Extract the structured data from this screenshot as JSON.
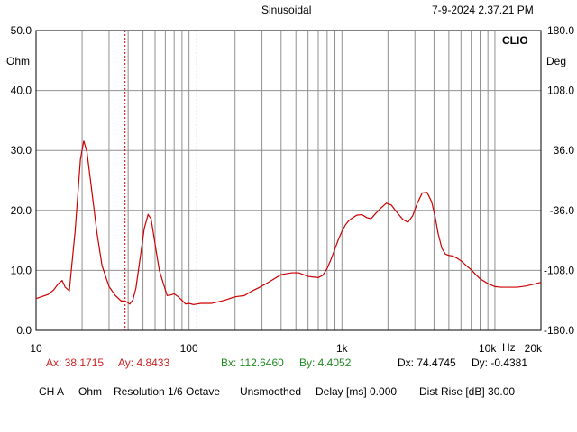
{
  "header": {
    "mode": "Sinusoidal",
    "timestamp": "7-9-2024 2.37.21 PM",
    "brand": "CLIO"
  },
  "axes": {
    "left_unit": "Ohm",
    "right_unit": "Deg",
    "x_unit": "Hz"
  },
  "cursors": {
    "a_x": "Ax: 38.1715",
    "a_y": "Ay: 4.8433",
    "b_x": "Bx: 112.6460",
    "b_y": "By: 4.4052",
    "d_x": "Dx: 74.4745",
    "d_y": "Dy: -0.4381"
  },
  "status": {
    "channel": "CH A",
    "unit": "Ohm",
    "resolution": "Resolution 1/6 Octave",
    "smoothing": "Unsmoothed",
    "delay": "Delay [ms] 0.000",
    "dist_rise": "Dist Rise [dB] 30.00"
  },
  "colors": {
    "trace": "#cc0000",
    "cursor_a": "#cc0000",
    "cursor_b": "#008000",
    "grid": "#909090",
    "cursor_a_text": "#cc2222",
    "cursor_b_text": "#228822"
  },
  "chart_data": {
    "type": "line",
    "x_scale": "log",
    "xlim": [
      10,
      20000
    ],
    "ylim": [
      0,
      50
    ],
    "y2lim": [
      -180,
      180
    ],
    "x_ticks": [
      10,
      100,
      1000,
      10000,
      20000
    ],
    "x_tick_labels": [
      "10",
      "100",
      "1k",
      "10k",
      "20k"
    ],
    "y_ticks": [
      0,
      10,
      20,
      30,
      40,
      50
    ],
    "y_tick_labels": [
      "0.0",
      "10.0",
      "20.0",
      "30.0",
      "40.0",
      "50.0"
    ],
    "y2_ticks": [
      -180,
      -108,
      -36,
      36,
      108,
      180
    ],
    "y2_tick_labels": [
      "-180.0",
      "-108.0",
      "-36.0",
      "36.0",
      "108.0",
      "180.0"
    ],
    "grid": true,
    "cursor_a_x": 38.1715,
    "cursor_b_x": 112.646,
    "series": [
      {
        "x": [
          10,
          12,
          13,
          14,
          14.8,
          15.5,
          16.5,
          18,
          19.5,
          20.5,
          21.5,
          23,
          25,
          27,
          30,
          33,
          36,
          38.2,
          41,
          43,
          45,
          48,
          51,
          54,
          56.5,
          58.5,
          61,
          64,
          68,
          72,
          76,
          80,
          85,
          90,
          95,
          100,
          107,
          112.6,
          120,
          140,
          170,
          200,
          230,
          260,
          290,
          330,
          400,
          470,
          520,
          560,
          600,
          650,
          700,
          750,
          800,
          850,
          900,
          950,
          1000,
          1050,
          1100,
          1150,
          1250,
          1350,
          1450,
          1550,
          1650,
          1800,
          1950,
          2100,
          2300,
          2500,
          2700,
          2900,
          3100,
          3350,
          3600,
          3850,
          4050,
          4250,
          4500,
          4750,
          5000,
          5300,
          5600,
          6000,
          6500,
          7000,
          7500,
          8000,
          9000,
          10000,
          11000,
          12000,
          14000,
          16000,
          18000,
          20000
        ],
        "values": [
          5.3,
          6.0,
          6.7,
          7.8,
          8.3,
          7.2,
          6.6,
          16.5,
          28.5,
          31.6,
          29.8,
          23.8,
          16.3,
          10.8,
          7.3,
          5.8,
          4.9,
          4.9,
          4.4,
          5.1,
          7.1,
          12.2,
          17.0,
          19.3,
          18.6,
          16.2,
          13.2,
          10.0,
          7.8,
          5.8,
          5.9,
          6.1,
          5.6,
          5.0,
          4.4,
          4.5,
          4.3,
          4.4,
          4.5,
          4.5,
          5.0,
          5.6,
          5.8,
          6.6,
          7.2,
          8.0,
          9.3,
          9.6,
          9.6,
          9.3,
          9.0,
          8.9,
          8.8,
          9.2,
          10.3,
          11.9,
          13.6,
          15.2,
          16.5,
          17.5,
          18.2,
          18.6,
          19.2,
          19.3,
          18.8,
          18.6,
          19.4,
          20.4,
          21.2,
          20.9,
          19.6,
          18.5,
          18.0,
          19.1,
          21.1,
          22.9,
          23.0,
          21.5,
          19.2,
          16.2,
          13.7,
          12.7,
          12.5,
          12.4,
          12.1,
          11.6,
          10.8,
          10.1,
          9.3,
          8.6,
          7.8,
          7.3,
          7.2,
          7.2,
          7.2,
          7.4,
          7.7,
          8.0
        ]
      }
    ]
  }
}
